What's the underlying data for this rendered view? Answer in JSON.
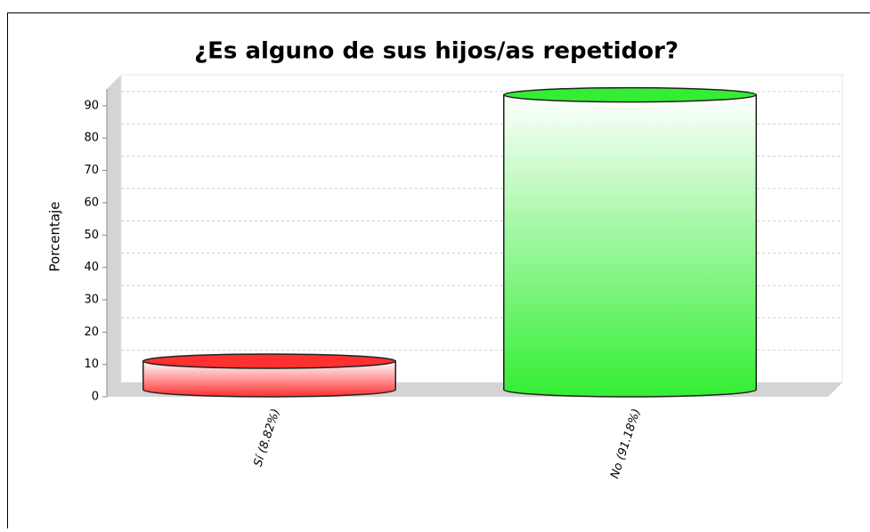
{
  "chart_data": {
    "type": "bar3d-cylinder",
    "title": "¿Es alguno de sus hijos/as repetidor?",
    "y_label": "Porcentaje",
    "categories": [
      "Sí (8.82%)",
      "No (91.18%)"
    ],
    "values": [
      8.82,
      91.18
    ],
    "colors": [
      "#ff3030",
      "#33ee33"
    ],
    "ylim": [
      0,
      95.2
    ],
    "yticks": [
      0,
      10,
      20,
      30,
      40,
      50,
      60,
      70,
      80,
      90
    ],
    "grid": true
  }
}
